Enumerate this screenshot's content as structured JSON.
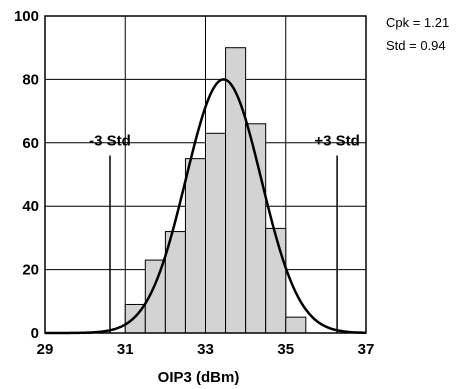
{
  "chart_data": {
    "type": "bar",
    "xlabel": "OIP3 (dBm)",
    "ylabel": "",
    "xlim": [
      29,
      37
    ],
    "ylim": [
      0,
      100
    ],
    "xticks": [
      "29",
      "31",
      "33",
      "35",
      "37"
    ],
    "yticks": [
      "0",
      "20",
      "40",
      "60",
      "80",
      "100"
    ],
    "grid": true,
    "bar_color": "#d3d3d3",
    "bars": [
      {
        "x0": 31.0,
        "x1": 31.5,
        "value": 9
      },
      {
        "x0": 31.5,
        "x1": 32.0,
        "value": 23
      },
      {
        "x0": 32.0,
        "x1": 32.5,
        "value": 32
      },
      {
        "x0": 32.5,
        "x1": 33.0,
        "value": 55
      },
      {
        "x0": 33.0,
        "x1": 33.5,
        "value": 63
      },
      {
        "x0": 33.5,
        "x1": 34.0,
        "value": 90
      },
      {
        "x0": 34.0,
        "x1": 34.5,
        "value": 66
      },
      {
        "x0": 34.5,
        "x1": 35.0,
        "value": 33
      },
      {
        "x0": 35.0,
        "x1": 35.5,
        "value": 5
      }
    ],
    "curve": {
      "mean": 33.45,
      "peak": 80,
      "std": 0.94
    },
    "std_lines": [
      {
        "label": "-3 Std",
        "x": 30.62,
        "y_top": 56
      },
      {
        "label": "+3 Std",
        "x": 36.28,
        "y_top": 56
      }
    ],
    "stats": [
      "Cpk = 1.21",
      "Std = 0.94"
    ]
  }
}
